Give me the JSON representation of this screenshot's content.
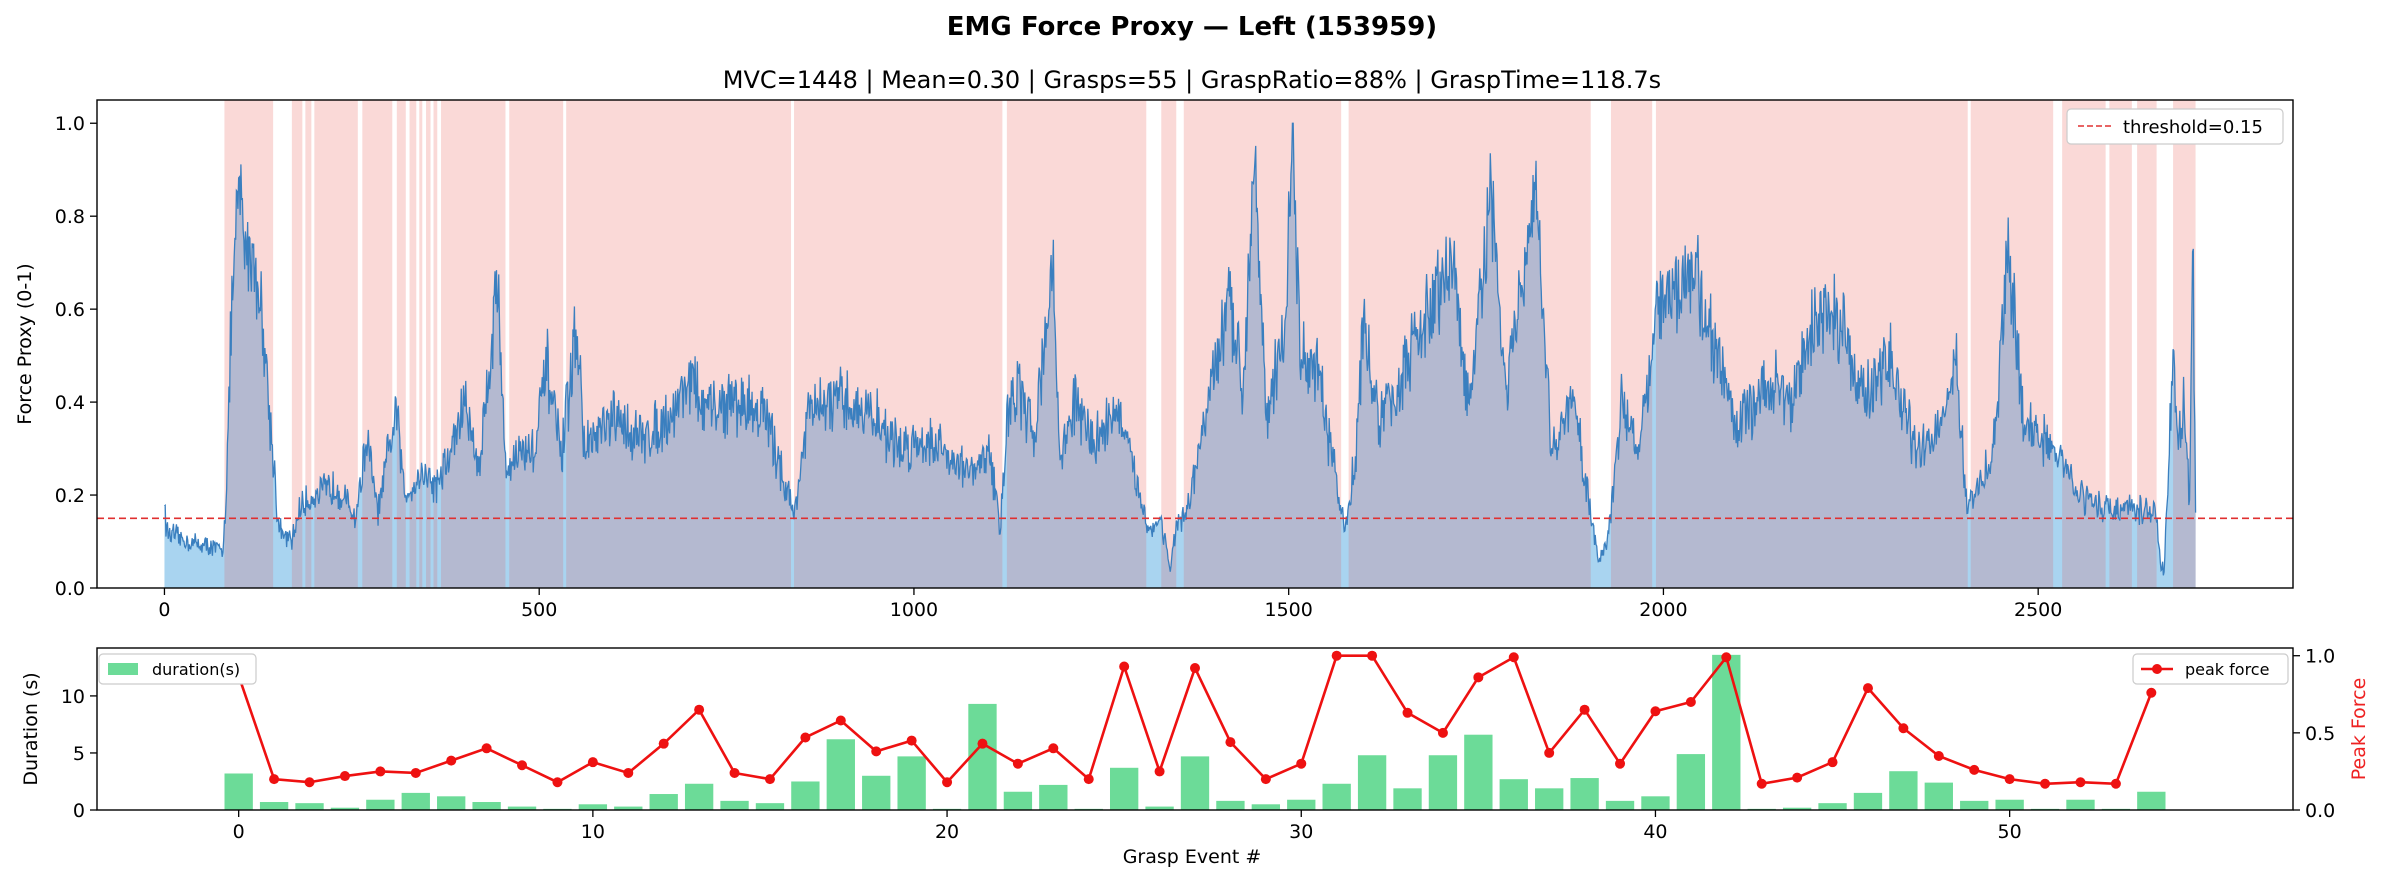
{
  "figure": {
    "title": "EMG Force Proxy — Left (153959)"
  },
  "chart_data": [
    {
      "type": "area",
      "title": "MVC=1448 | Mean=0.30 | Grasps=55 | GraspRatio=88% | GraspTime=118.7s",
      "xlabel": "",
      "ylabel": "Force Proxy (0-1)",
      "xlim": [
        -90,
        2840
      ],
      "ylim": [
        0,
        1.05
      ],
      "x_ticks": [
        0,
        500,
        1000,
        1500,
        2000,
        2500
      ],
      "y_ticks": [
        0.0,
        0.2,
        0.4,
        0.6,
        0.8,
        1.0
      ],
      "x_tick_labels": [
        "0",
        "500",
        "1000",
        "1500",
        "2000",
        "2500"
      ],
      "y_tick_labels": [
        "0.0",
        "0.2",
        "0.4",
        "0.6",
        "0.8",
        "1.0"
      ],
      "grid": false,
      "threshold": {
        "value": 0.15,
        "label": "threshold=0.15",
        "color": "#e03030"
      },
      "legend": {
        "position": "top-right",
        "entries": [
          "threshold=0.15"
        ]
      },
      "colors": {
        "line": "#3a7fbf",
        "fill_below": "#a9d4f0",
        "grasp_fill": "#b4b9d0",
        "grasp_band": "#f9d2d0"
      },
      "signal": {
        "n": 2710,
        "anchors": [
          [
            0,
            0.19
          ],
          [
            3,
            0.12
          ],
          [
            30,
            0.1
          ],
          [
            60,
            0.09
          ],
          [
            78,
            0.08
          ],
          [
            82,
            0.2
          ],
          [
            90,
            0.6
          ],
          [
            95,
            0.75
          ],
          [
            100,
            0.87
          ],
          [
            108,
            0.73
          ],
          [
            118,
            0.72
          ],
          [
            125,
            0.64
          ],
          [
            132,
            0.57
          ],
          [
            140,
            0.38
          ],
          [
            146,
            0.27
          ],
          [
            152,
            0.13
          ],
          [
            160,
            0.11
          ],
          [
            170,
            0.1
          ],
          [
            180,
            0.17
          ],
          [
            200,
            0.2
          ],
          [
            230,
            0.22
          ],
          [
            255,
            0.15
          ],
          [
            270,
            0.32
          ],
          [
            285,
            0.16
          ],
          [
            300,
            0.3
          ],
          [
            310,
            0.38
          ],
          [
            320,
            0.2
          ],
          [
            345,
            0.25
          ],
          [
            362,
            0.22
          ],
          [
            380,
            0.28
          ],
          [
            400,
            0.4
          ],
          [
            420,
            0.26
          ],
          [
            445,
            0.67
          ],
          [
            455,
            0.25
          ],
          [
            470,
            0.29
          ],
          [
            495,
            0.3
          ],
          [
            510,
            0.48
          ],
          [
            530,
            0.28
          ],
          [
            550,
            0.57
          ],
          [
            560,
            0.3
          ],
          [
            600,
            0.36
          ],
          [
            640,
            0.32
          ],
          [
            680,
            0.38
          ],
          [
            700,
            0.46
          ],
          [
            720,
            0.38
          ],
          [
            760,
            0.4
          ],
          [
            800,
            0.38
          ],
          [
            840,
            0.16
          ],
          [
            860,
            0.38
          ],
          [
            900,
            0.4
          ],
          [
            940,
            0.38
          ],
          [
            980,
            0.3
          ],
          [
            1020,
            0.32
          ],
          [
            1060,
            0.27
          ],
          [
            1080,
            0.24
          ],
          [
            1100,
            0.3
          ],
          [
            1115,
            0.13
          ],
          [
            1125,
            0.38
          ],
          [
            1140,
            0.43
          ],
          [
            1160,
            0.32
          ],
          [
            1175,
            0.55
          ],
          [
            1185,
            0.68
          ],
          [
            1195,
            0.28
          ],
          [
            1215,
            0.4
          ],
          [
            1240,
            0.31
          ],
          [
            1270,
            0.39
          ],
          [
            1300,
            0.21
          ],
          [
            1315,
            0.12
          ],
          [
            1330,
            0.15
          ],
          [
            1342,
            0.04
          ],
          [
            1350,
            0.13
          ],
          [
            1365,
            0.16
          ],
          [
            1390,
            0.38
          ],
          [
            1420,
            0.6
          ],
          [
            1440,
            0.45
          ],
          [
            1455,
            0.97
          ],
          [
            1470,
            0.36
          ],
          [
            1495,
            0.55
          ],
          [
            1505,
            1.0
          ],
          [
            1515,
            0.5
          ],
          [
            1540,
            0.45
          ],
          [
            1560,
            0.26
          ],
          [
            1575,
            0.12
          ],
          [
            1590,
            0.3
          ],
          [
            1600,
            0.58
          ],
          [
            1620,
            0.35
          ],
          [
            1650,
            0.45
          ],
          [
            1700,
            0.64
          ],
          [
            1720,
            0.7
          ],
          [
            1740,
            0.38
          ],
          [
            1770,
            0.84
          ],
          [
            1790,
            0.42
          ],
          [
            1810,
            0.63
          ],
          [
            1830,
            0.84
          ],
          [
            1850,
            0.3
          ],
          [
            1880,
            0.4
          ],
          [
            1905,
            0.14
          ],
          [
            1915,
            0.06
          ],
          [
            1925,
            0.1
          ],
          [
            1945,
            0.4
          ],
          [
            1965,
            0.3
          ],
          [
            1990,
            0.58
          ],
          [
            2020,
            0.65
          ],
          [
            2040,
            0.7
          ],
          [
            2070,
            0.5
          ],
          [
            2100,
            0.35
          ],
          [
            2150,
            0.45
          ],
          [
            2170,
            0.39
          ],
          [
            2200,
            0.57
          ],
          [
            2230,
            0.6
          ],
          [
            2270,
            0.4
          ],
          [
            2300,
            0.5
          ],
          [
            2340,
            0.28
          ],
          [
            2370,
            0.36
          ],
          [
            2390,
            0.5
          ],
          [
            2405,
            0.16
          ],
          [
            2420,
            0.22
          ],
          [
            2440,
            0.28
          ],
          [
            2460,
            0.73
          ],
          [
            2480,
            0.36
          ],
          [
            2520,
            0.3
          ],
          [
            2535,
            0.26
          ],
          [
            2560,
            0.2
          ],
          [
            2590,
            0.17
          ],
          [
            2620,
            0.17
          ],
          [
            2645,
            0.16
          ],
          [
            2655,
            0.18
          ],
          [
            2663,
            0.06
          ],
          [
            2668,
            0.03
          ],
          [
            2675,
            0.3
          ],
          [
            2680,
            0.49
          ],
          [
            2688,
            0.3
          ],
          [
            2695,
            0.43
          ],
          [
            2702,
            0.18
          ],
          [
            2706,
            0.76
          ],
          [
            2710,
            0.18
          ]
        ]
      },
      "grasp_intervals": [
        [
          80,
          145
        ],
        [
          170,
          184
        ],
        [
          188,
          196
        ],
        [
          200,
          258
        ],
        [
          264,
          304
        ],
        [
          310,
          322
        ],
        [
          327,
          336
        ],
        [
          340,
          344
        ],
        [
          349,
          355
        ],
        [
          359,
          364
        ],
        [
          369,
          455
        ],
        [
          460,
          532
        ],
        [
          536,
          836
        ],
        [
          840,
          1118
        ],
        [
          1124,
          1310
        ],
        [
          1330,
          1350
        ],
        [
          1360,
          1570
        ],
        [
          1580,
          1903
        ],
        [
          1930,
          1985
        ],
        [
          1990,
          2406
        ],
        [
          2410,
          2520
        ],
        [
          2532,
          2590
        ],
        [
          2595,
          2625
        ],
        [
          2632,
          2658
        ],
        [
          2680,
          2710
        ]
      ]
    },
    {
      "type": "bar",
      "title": "",
      "xlabel": "Grasp Event #",
      "ylabel": "Duration (s)",
      "y2label": "Peak Force",
      "xlim": [
        -4,
        58
      ],
      "ylim": [
        0,
        14.2
      ],
      "y2lim": [
        0,
        1.05
      ],
      "x_ticks": [
        0,
        10,
        20,
        30,
        40,
        50
      ],
      "y_ticks": [
        0,
        5,
        10
      ],
      "y2_ticks": [
        0.0,
        0.5,
        1.0
      ],
      "x_tick_labels": [
        "0",
        "10",
        "20",
        "30",
        "40",
        "50"
      ],
      "y_tick_labels": [
        "0",
        "5",
        "10"
      ],
      "y2_tick_labels": [
        "0.0",
        "0.5",
        "1.0"
      ],
      "legend": {
        "left": "duration(s)",
        "right": "peak force"
      },
      "colors": {
        "bar": "#6cdb98",
        "line": "#ee1111",
        "y2label": "#ee2222"
      },
      "categories": [
        0,
        1,
        2,
        3,
        4,
        5,
        6,
        7,
        8,
        9,
        10,
        11,
        12,
        13,
        14,
        15,
        16,
        17,
        18,
        19,
        20,
        21,
        22,
        23,
        24,
        25,
        26,
        27,
        28,
        29,
        30,
        31,
        32,
        33,
        34,
        35,
        36,
        37,
        38,
        39,
        40,
        41,
        42,
        43,
        44,
        45,
        46,
        47,
        48,
        49,
        50,
        51,
        52,
        53,
        54
      ],
      "series": [
        {
          "name": "duration(s)",
          "values": [
            3.2,
            0.7,
            0.6,
            0.2,
            0.9,
            1.5,
            1.2,
            0.7,
            0.3,
            0.1,
            0.5,
            0.3,
            1.4,
            2.3,
            0.8,
            0.6,
            2.5,
            6.2,
            3.0,
            4.7,
            0.1,
            9.3,
            1.6,
            2.2,
            0.1,
            3.7,
            0.3,
            4.7,
            0.8,
            0.5,
            0.9,
            2.3,
            4.8,
            1.9,
            4.8,
            6.6,
            2.7,
            1.9,
            2.8,
            0.8,
            1.2,
            4.9,
            13.6,
            0.1,
            0.2,
            0.6,
            1.5,
            3.4,
            2.4,
            0.8,
            0.9,
            0.1,
            0.9,
            0.1,
            1.6
          ]
        },
        {
          "name": "peak force",
          "values": [
            0.87,
            0.2,
            0.18,
            0.22,
            0.25,
            0.24,
            0.32,
            0.4,
            0.29,
            0.18,
            0.31,
            0.24,
            0.43,
            0.65,
            0.24,
            0.2,
            0.47,
            0.58,
            0.38,
            0.45,
            0.18,
            0.43,
            0.3,
            0.4,
            0.2,
            0.93,
            0.25,
            0.92,
            0.44,
            0.2,
            0.3,
            1.0,
            1.0,
            0.63,
            0.5,
            0.86,
            0.99,
            0.37,
            0.65,
            0.3,
            0.64,
            0.7,
            0.99,
            0.17,
            0.21,
            0.31,
            0.79,
            0.53,
            0.35,
            0.26,
            0.2,
            0.17,
            0.18,
            0.17,
            0.76
          ]
        }
      ]
    }
  ]
}
